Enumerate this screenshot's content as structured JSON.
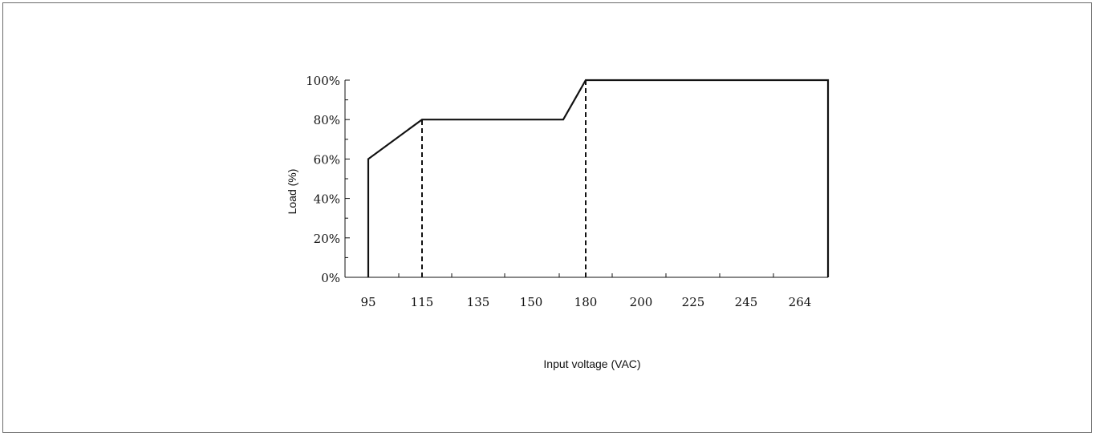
{
  "chart_data": {
    "type": "line",
    "xlabel": "Input voltage (VAC)",
    "ylabel": "Load (%)",
    "x_ticks": [
      "95",
      "115",
      "135",
      "150",
      "180",
      "200",
      "225",
      "245",
      "264"
    ],
    "y_ticks": [
      "0%",
      "20%",
      "40%",
      "60%",
      "80%",
      "100%"
    ],
    "ylim": [
      0,
      100
    ],
    "series": [
      {
        "x": [
          95,
          95,
          115,
          170,
          180,
          270,
          270
        ],
        "y": [
          0,
          60,
          80,
          80,
          100,
          100,
          0
        ]
      }
    ],
    "reference_lines": [
      {
        "x": 115,
        "y_from": 0,
        "y_to": 80,
        "style": "dashed"
      },
      {
        "x": 180,
        "y_from": 0,
        "y_to": 100,
        "style": "dashed"
      }
    ],
    "grid": false
  }
}
